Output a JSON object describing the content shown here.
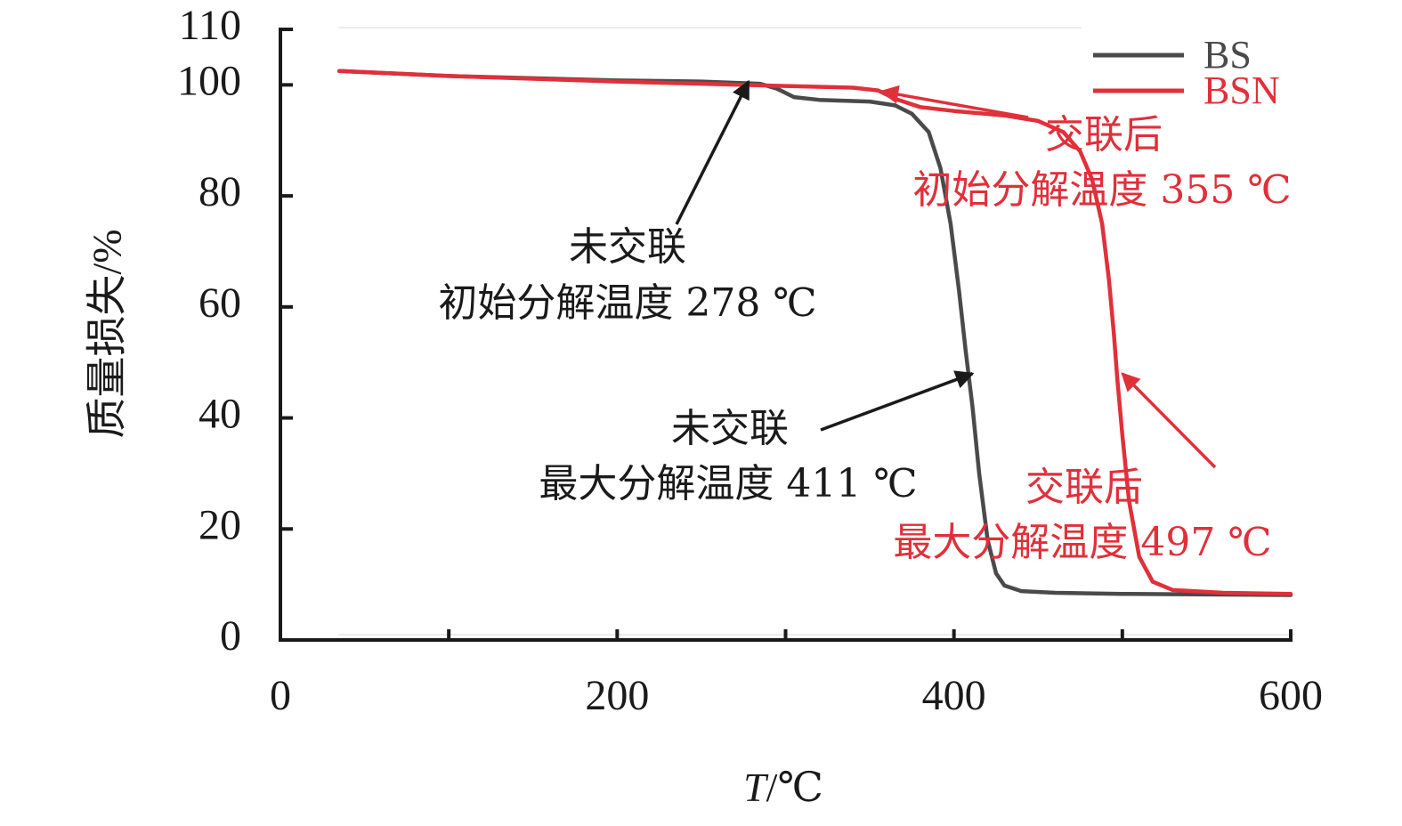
{
  "chart_data": {
    "type": "line",
    "title": "",
    "xlabel_var": "T",
    "xlabel_unit": "/℃",
    "ylabel": "质量损失/%",
    "xlim": [
      0,
      600
    ],
    "ylim": [
      0,
      110
    ],
    "x_ticks": [
      0,
      200,
      400,
      600
    ],
    "y_ticks": [
      0,
      20,
      40,
      60,
      80,
      100,
      110
    ],
    "grid": false,
    "legend_position": "top-right",
    "series": [
      {
        "name": "BS",
        "color": "#4a4a4a",
        "points": [
          [
            35,
            102.5
          ],
          [
            100,
            101.6
          ],
          [
            200,
            100.8
          ],
          [
            250,
            100.6
          ],
          [
            285,
            100.2
          ],
          [
            295,
            99.3
          ],
          [
            305,
            97.8
          ],
          [
            320,
            97.3
          ],
          [
            350,
            97.0
          ],
          [
            365,
            96.3
          ],
          [
            375,
            94.8
          ],
          [
            385,
            91.5
          ],
          [
            392,
            85
          ],
          [
            398,
            75
          ],
          [
            403,
            63
          ],
          [
            407,
            52
          ],
          [
            411,
            42
          ],
          [
            415,
            30
          ],
          [
            420,
            18
          ],
          [
            425,
            12
          ],
          [
            430,
            9.8
          ],
          [
            440,
            8.8
          ],
          [
            460,
            8.5
          ],
          [
            500,
            8.3
          ],
          [
            550,
            8.2
          ],
          [
            600,
            8.1
          ]
        ]
      },
      {
        "name": "BSN",
        "color": "#e0303a",
        "points": [
          [
            35,
            102.5
          ],
          [
            100,
            101.6
          ],
          [
            200,
            100.6
          ],
          [
            300,
            99.8
          ],
          [
            340,
            99.5
          ],
          [
            355,
            99.0
          ],
          [
            365,
            97.5
          ],
          [
            380,
            96.0
          ],
          [
            400,
            95.3
          ],
          [
            430,
            94.5
          ],
          [
            450,
            93.5
          ],
          [
            465,
            91.5
          ],
          [
            475,
            88
          ],
          [
            482,
            83
          ],
          [
            488,
            75
          ],
          [
            492,
            65
          ],
          [
            495,
            55
          ],
          [
            497,
            47
          ],
          [
            500,
            37
          ],
          [
            504,
            25
          ],
          [
            510,
            15
          ],
          [
            518,
            10.5
          ],
          [
            530,
            9
          ],
          [
            560,
            8.5
          ],
          [
            600,
            8.3
          ]
        ]
      }
    ],
    "annotations": [
      {
        "id": "bs-onset",
        "lines": [
          "未交联",
          "初始分解温度 278 ℃"
        ],
        "color": "#1a1a1a",
        "arrow_to": [
          278,
          100.6
        ]
      },
      {
        "id": "bs-max",
        "lines": [
          "未交联",
          "最大分解温度 411 ℃"
        ],
        "color": "#1a1a1a",
        "arrow_to": [
          411,
          48
        ]
      },
      {
        "id": "bsn-onset",
        "lines": [
          "交联后",
          "初始分解温度 355 ℃"
        ],
        "color": "#e0303a",
        "arrow_to": [
          357,
          98.8
        ]
      },
      {
        "id": "bsn-max",
        "lines": [
          "交联后",
          "最大分解温度 497 ℃"
        ],
        "color": "#e0303a",
        "arrow_to": [
          500,
          48
        ]
      }
    ]
  }
}
